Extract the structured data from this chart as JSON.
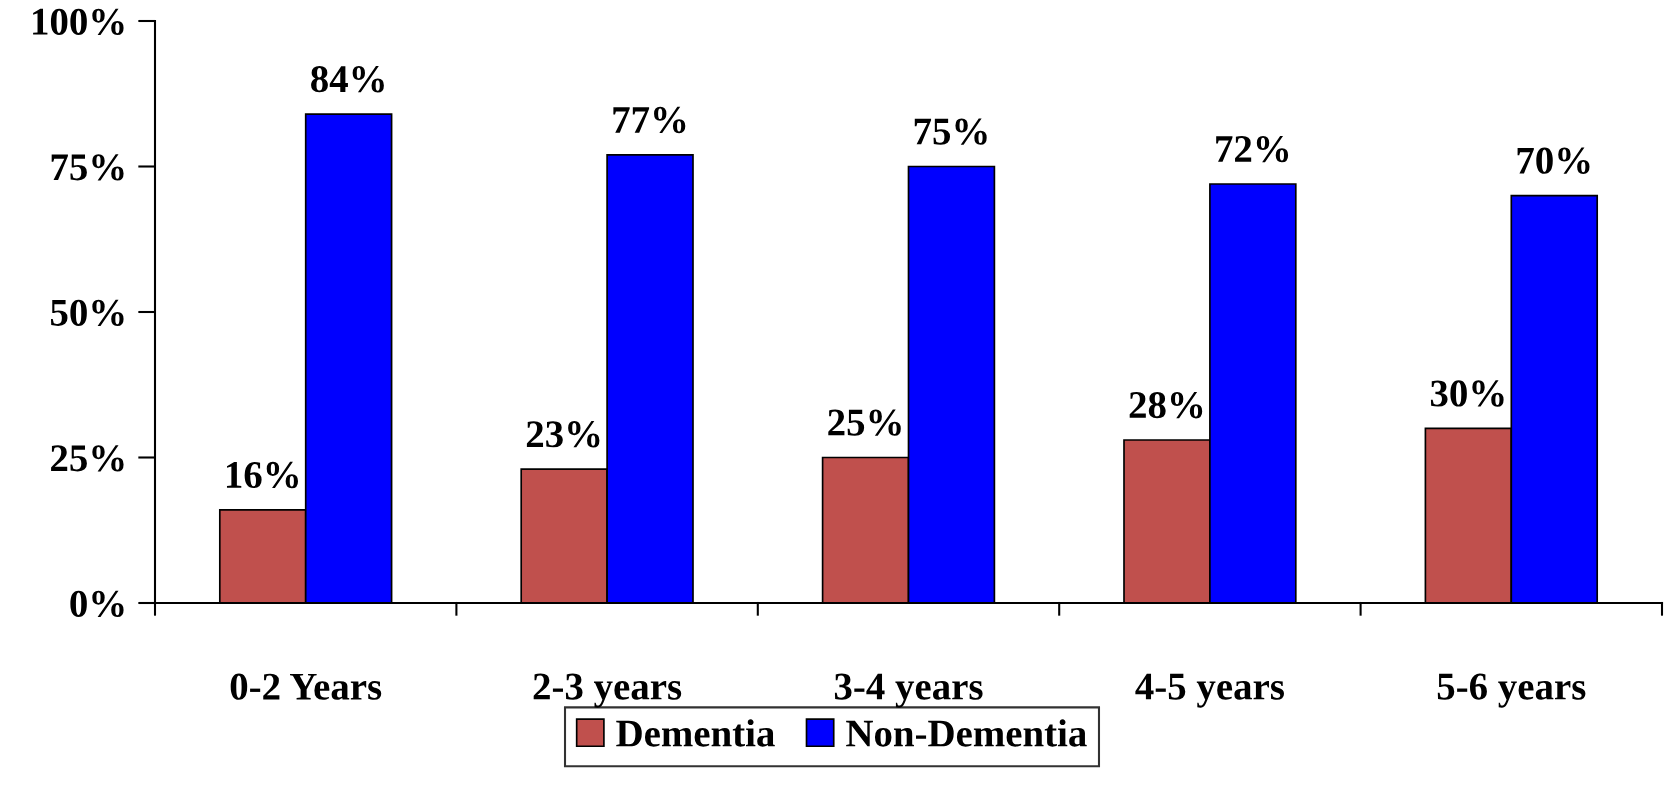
{
  "chart_data": {
    "type": "bar",
    "categories": [
      "0-2 Years",
      "2-3 years",
      "3-4 years",
      "4-5 years",
      "5-6 years"
    ],
    "series": [
      {
        "name": "Dementia",
        "color": "#c0504d",
        "values": [
          16,
          23,
          25,
          28,
          30
        ],
        "value_labels": [
          "16%",
          "23%",
          "25%",
          "28%",
          "30%"
        ]
      },
      {
        "name": "Non-Dementia",
        "color": "#0000ff",
        "values": [
          84,
          77,
          75,
          72,
          70
        ],
        "value_labels": [
          "84%",
          "77%",
          "75%",
          "72%",
          "70%"
        ]
      }
    ],
    "ylim": [
      0,
      100
    ],
    "yticks": [
      {
        "value": 0,
        "label": "0%"
      },
      {
        "value": 25,
        "label": "25%"
      },
      {
        "value": 50,
        "label": "50%"
      },
      {
        "value": 75,
        "label": "75%"
      },
      {
        "value": 100,
        "label": "100%"
      }
    ],
    "grid": false,
    "legend": "bottom"
  }
}
